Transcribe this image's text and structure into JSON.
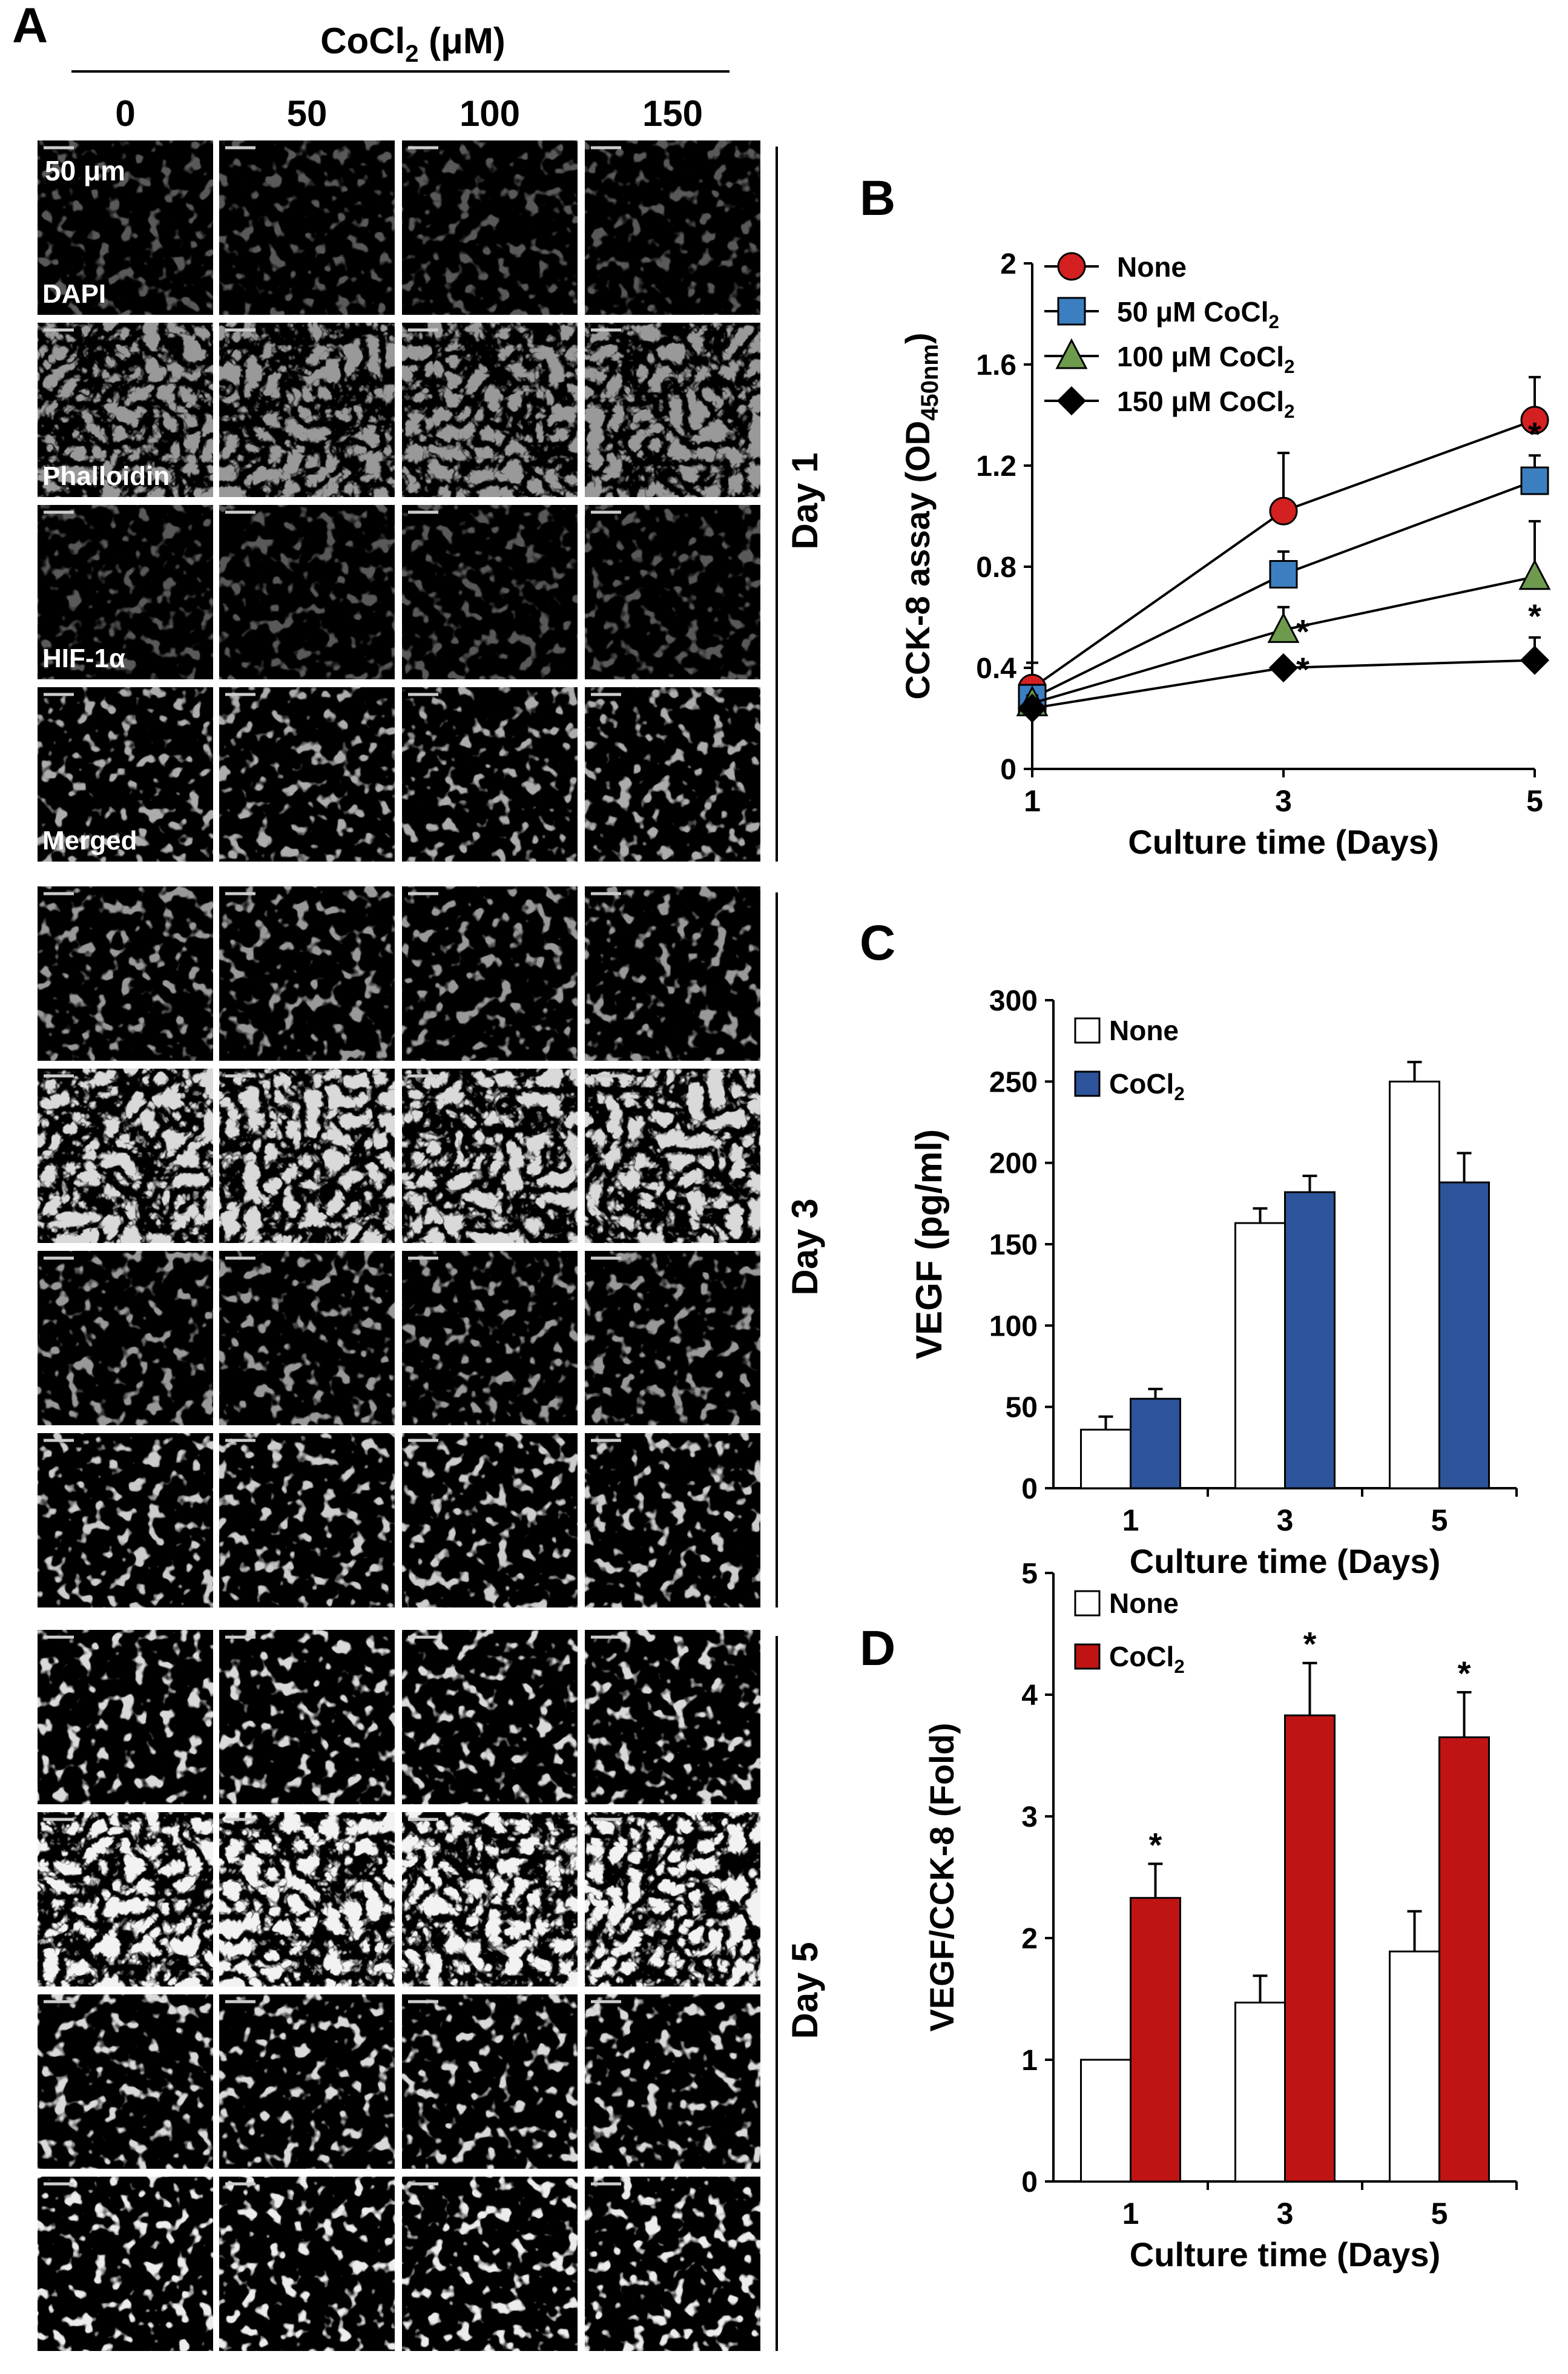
{
  "panel_A": {
    "letter": "A",
    "header_prefix": "CoCl",
    "header_sub": "2",
    "header_suffix": " (μM)",
    "columns": [
      "0",
      "50",
      "100",
      "150"
    ],
    "scale_bar_label": "50 μm",
    "channel_labels": [
      "DAPI",
      "Phalloidin",
      "HIF-1α",
      "Merged"
    ],
    "day_labels": [
      "Day 1",
      "Day 3",
      "Day 5"
    ],
    "channel_colors": [
      "#1a1aff",
      "#22cc22",
      "#cc1a1a",
      "#30c060"
    ]
  },
  "chart_data": [
    {
      "panel": "B",
      "type": "line",
      "ylabel_main": "CCK-8 assay (OD",
      "ylabel_sub": "450nm",
      "ylabel_close": ")",
      "xlabel": "Culture time (Days)",
      "x": [
        1,
        3,
        5
      ],
      "xticks": [
        "1",
        "3",
        "5"
      ],
      "ylim": [
        0,
        2
      ],
      "yticks": [
        "0",
        "0.4",
        "0.8",
        "1.2",
        "1.6",
        "2"
      ],
      "legend_position": "top-left",
      "series": [
        {
          "name": "None",
          "values": [
            0.32,
            1.02,
            1.38
          ],
          "errors": [
            0.1,
            0.23,
            0.17
          ],
          "marker": "circle",
          "color": "#d42020",
          "sig": [
            false,
            false,
            false
          ]
        },
        {
          "name": "50 μM CoCl",
          "name_sub": "2",
          "values": [
            0.28,
            0.77,
            1.14
          ],
          "errors": [
            0.04,
            0.09,
            0.1
          ],
          "marker": "square",
          "color": "#3c7fc0",
          "sig": [
            false,
            false,
            true
          ]
        },
        {
          "name": "100 μM CoCl",
          "name_sub": "2",
          "values": [
            0.26,
            0.55,
            0.76
          ],
          "errors": [
            0.03,
            0.09,
            0.22
          ],
          "marker": "triangle",
          "color": "#6e9a4e",
          "sig": [
            false,
            true,
            false
          ]
        },
        {
          "name": "150 μM CoCl",
          "name_sub": "2",
          "values": [
            0.24,
            0.4,
            0.43
          ],
          "errors": [
            0.02,
            0.03,
            0.09
          ],
          "marker": "diamond",
          "color": "#000000",
          "sig": [
            false,
            true,
            true
          ]
        }
      ],
      "annotations": [
        "*"
      ]
    },
    {
      "panel": "C",
      "type": "bar",
      "ylabel": "VEGF (pg/ml)",
      "xlabel": "Culture time (Days)",
      "categories": [
        "1",
        "3",
        "5"
      ],
      "ylim": [
        0,
        300
      ],
      "yticks": [
        "0",
        "50",
        "100",
        "150",
        "200",
        "250",
        "300"
      ],
      "legend_position": "top-left",
      "series": [
        {
          "name": "None",
          "values": [
            36,
            163,
            250
          ],
          "errors": [
            8,
            9,
            12
          ],
          "color": "#ffffff",
          "sig": [
            false,
            false,
            false
          ]
        },
        {
          "name": "CoCl",
          "name_sub": "2",
          "values": [
            55,
            182,
            188
          ],
          "errors": [
            6,
            10,
            18
          ],
          "color": "#2d549a",
          "sig": [
            false,
            false,
            false
          ]
        }
      ]
    },
    {
      "panel": "D",
      "type": "bar",
      "ylabel": "VEGF/CCK-8 (Fold)",
      "xlabel": "Culture time (Days)",
      "categories": [
        "1",
        "3",
        "5"
      ],
      "ylim": [
        0,
        5
      ],
      "yticks": [
        "0",
        "1",
        "2",
        "3",
        "4",
        "5"
      ],
      "legend_position": "top-left",
      "series": [
        {
          "name": "None",
          "values": [
            1.0,
            1.47,
            1.89
          ],
          "errors": [
            0,
            0.22,
            0.33
          ],
          "color": "#ffffff",
          "sig": [
            false,
            false,
            false
          ]
        },
        {
          "name": "CoCl",
          "name_sub": "2",
          "values": [
            2.33,
            3.83,
            3.65
          ],
          "errors": [
            0.28,
            0.43,
            0.37
          ],
          "color": "#c01414",
          "sig": [
            true,
            true,
            true
          ]
        }
      ],
      "annotations": [
        "*"
      ]
    }
  ]
}
